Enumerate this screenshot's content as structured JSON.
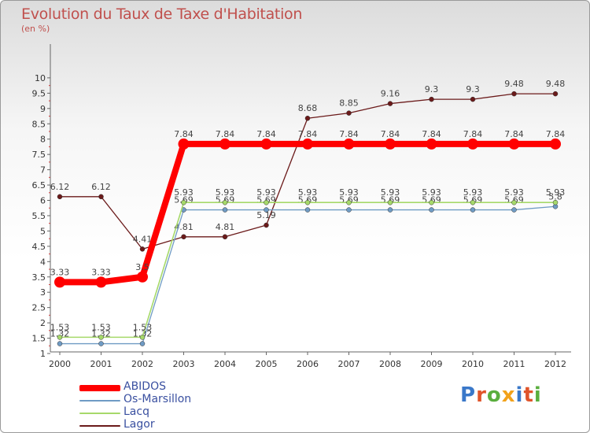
{
  "chart_data": {
    "type": "line",
    "title": "Evolution du Taux de Taxe d'Habitation",
    "unit_label": "(en %)",
    "xlabel": "",
    "ylabel": "",
    "categories": [
      "2000",
      "2001",
      "2002",
      "2003",
      "2004",
      "2005",
      "2006",
      "2007",
      "2008",
      "2009",
      "2010",
      "2011",
      "2012"
    ],
    "y_ticks": [
      "1",
      "1.5",
      "2",
      "2.5",
      "3",
      "3.5",
      "4",
      "4.5",
      "5",
      "5.5",
      "6",
      "6.5",
      "7",
      "7.5",
      "8",
      "8.5",
      "9",
      "9.5",
      "10"
    ],
    "ylim": [
      1,
      10
    ],
    "grid": "none",
    "legend_position": "bottom-left",
    "series": [
      {
        "name": "Lagor",
        "color": "#6b1a1a",
        "width": 1.3,
        "values": [
          6.12,
          6.12,
          4.41,
          4.81,
          4.81,
          5.19,
          8.68,
          8.85,
          9.16,
          9.3,
          9.3,
          9.48,
          9.48
        ],
        "labels": [
          "6.12",
          "6.12",
          "4.41",
          "4.81",
          "4.81",
          "5.19",
          "8.68",
          "8.85",
          "9.16",
          "9.3",
          "9.3",
          "9.48",
          "9.48"
        ]
      },
      {
        "name": "Os-Marsillon",
        "color": "#6f9bc4",
        "width": 1.3,
        "values": [
          1.32,
          1.32,
          1.32,
          5.69,
          5.69,
          5.69,
          5.69,
          5.69,
          5.69,
          5.69,
          5.69,
          5.69,
          5.8
        ],
        "labels": [
          "1.32",
          "1.32",
          "1.32",
          "5.69",
          "5.69",
          "5.69",
          "5.69",
          "5.69",
          "5.69",
          "5.69",
          "5.69",
          "5.69",
          "5.8"
        ]
      },
      {
        "name": "Lacq",
        "color": "#a6d96a",
        "width": 1.6,
        "values": [
          1.53,
          1.53,
          1.53,
          5.93,
          5.93,
          5.93,
          5.93,
          5.93,
          5.93,
          5.93,
          5.93,
          5.93,
          5.93
        ],
        "labels": [
          "1.53",
          "1.53",
          "1.53",
          "5.93",
          "5.93",
          "5.93",
          "5.93",
          "5.93",
          "5.93",
          "5.93",
          "5.93",
          "5.93",
          "5.93"
        ]
      },
      {
        "name": "ABIDOS",
        "color": "#ff0000",
        "width": 8,
        "values": [
          3.33,
          3.33,
          3.5,
          7.84,
          7.84,
          7.84,
          7.84,
          7.84,
          7.84,
          7.84,
          7.84,
          7.84,
          7.84
        ],
        "labels": [
          "3.33",
          "3.33",
          "3.5",
          "7.84",
          "7.84",
          "7.84",
          "7.84",
          "7.84",
          "7.84",
          "7.84",
          "7.84",
          "7.84",
          "7.84"
        ]
      }
    ],
    "legend": [
      {
        "name": "ABIDOS",
        "color": "#ff0000"
      },
      {
        "name": "Os-Marsillon",
        "color": "#6f9bc4"
      },
      {
        "name": "Lacq",
        "color": "#a6d96a"
      },
      {
        "name": "Lagor",
        "color": "#6b1a1a"
      }
    ]
  },
  "logo": {
    "letters": [
      "P",
      "r",
      "o",
      "x",
      "i",
      "t",
      "i"
    ],
    "colors": [
      "#3a78c9",
      "#e0542a",
      "#5aae3e",
      "#f2a21b",
      "#3a78c9",
      "#e0542a",
      "#5aae3e"
    ]
  }
}
